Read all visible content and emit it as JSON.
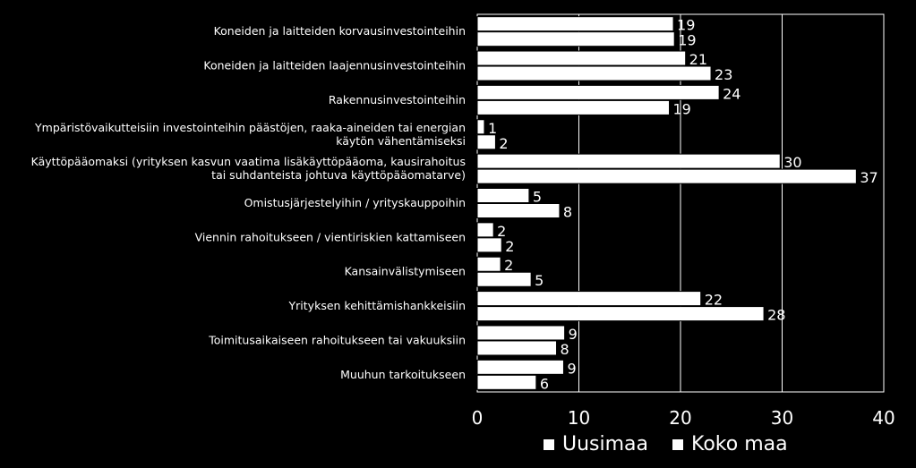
{
  "chart_data": {
    "type": "bar",
    "orientation": "horizontal",
    "categories": [
      [
        "Koneiden ja laitteiden korvausinvestointeihin"
      ],
      [
        "Koneiden ja laitteiden laajennusinvestointeihin"
      ],
      [
        "Rakennusinvestointeihin"
      ],
      [
        "Ympäristövaikutteisiin investointeihin päästöjen, raaka-aineiden tai energian",
        "käytön vähentämiseksi"
      ],
      [
        "Käyttöpääomaksi (yrityksen kasvun vaatima lisäkäyttöpääoma, kausirahoitus",
        "tai suhdanteista johtuva käyttöpääomatarve)"
      ],
      [
        "Omistusjärjestelyihin / yrityskauppoihin"
      ],
      [
        "Viennin rahoitukseen / vientiriskien kattamiseen"
      ],
      [
        "Kansainvälistymiseen"
      ],
      [
        "Yrityksen kehittämishankkeisiin"
      ],
      [
        "Toimitusaikaiseen rahoitukseen tai vakuuksiin"
      ],
      [
        "Muuhun tarkoitukseen"
      ]
    ],
    "series": [
      {
        "name": "Uusimaa",
        "values": [
          19.3,
          20.5,
          23.8,
          0.7,
          29.8,
          5.1,
          1.6,
          2.3,
          22.0,
          8.6,
          8.5
        ],
        "labels": [
          "19",
          "21",
          "24",
          "1",
          "30",
          "5",
          "2",
          "2",
          "22",
          "9",
          "9"
        ]
      },
      {
        "name": "Koko maa",
        "values": [
          19.4,
          23.0,
          18.9,
          1.8,
          37.3,
          8.1,
          2.4,
          5.3,
          28.2,
          7.8,
          5.8
        ],
        "labels": [
          "19",
          "23",
          "19",
          "2",
          "37",
          "8",
          "2",
          "5",
          "28",
          "8",
          "6"
        ]
      }
    ],
    "xlim": [
      0,
      40
    ],
    "xticks": [
      "0",
      "10",
      "20",
      "30",
      "40"
    ],
    "grid": true,
    "legend": "bottom",
    "colors": {
      "background": "#000000",
      "bars": "#ffffff",
      "bar_outline": "#000000",
      "plot_border": "#ffffff",
      "text": "#ffffff"
    }
  }
}
